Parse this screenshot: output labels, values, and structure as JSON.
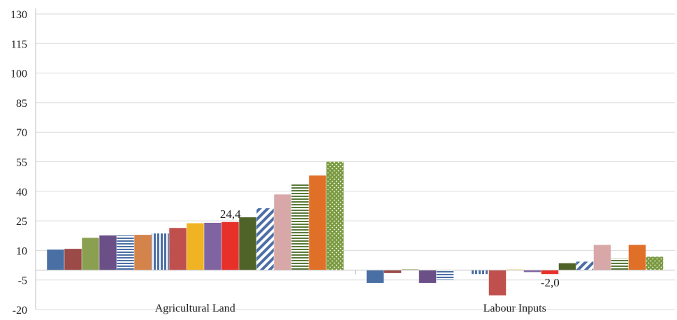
{
  "chart_data": {
    "type": "bar",
    "title": "",
    "xlabel": "",
    "ylabel": "",
    "ylim": [
      -20,
      130
    ],
    "y_ticks": [
      -20,
      -5,
      10,
      25,
      40,
      55,
      70,
      85,
      100,
      115,
      130
    ],
    "y_tick_labels": [
      "-20",
      "-5",
      "10",
      "25",
      "40",
      "55",
      "70",
      "85",
      "100",
      "115",
      "130"
    ],
    "grid": true,
    "legend": "none",
    "categories": [
      "Agricultural Land",
      "Labour Inputs"
    ],
    "series": [
      {
        "color": "#4a6fa5",
        "pattern": "solid",
        "values": [
          10.4,
          -6.5
        ]
      },
      {
        "color": "#9b4a48",
        "pattern": "solid",
        "values": [
          10.8,
          -1.5
        ]
      },
      {
        "color": "#8aa050",
        "pattern": "solid",
        "values": [
          16.4,
          0.4
        ]
      },
      {
        "color": "#6b5088",
        "pattern": "solid",
        "values": [
          17.6,
          -6.5
        ]
      },
      {
        "color": "#4a6fa5",
        "pattern": "hlines",
        "values": [
          17.6,
          -5.0
        ]
      },
      {
        "color": "#d4834a",
        "pattern": "solid",
        "values": [
          17.9,
          null
        ]
      },
      {
        "color": "#4a6fa5",
        "pattern": "vlines",
        "values": [
          18.6,
          -2.0
        ]
      },
      {
        "color": "#c0504d",
        "pattern": "solid",
        "values": [
          21.4,
          -12.8
        ]
      },
      {
        "color": "#f0b323",
        "pattern": "solid",
        "values": [
          23.8,
          0.3
        ]
      },
      {
        "color": "#8064a2",
        "pattern": "solid",
        "values": [
          24.0,
          -1.0
        ]
      },
      {
        "color": "#e8302a",
        "pattern": "solid",
        "values": [
          24.4,
          -2.0
        ]
      },
      {
        "color": "#4f6228",
        "pattern": "solid",
        "values": [
          26.8,
          3.5
        ]
      },
      {
        "color": "#4a6fa5",
        "pattern": "diagonal",
        "values": [
          31.4,
          4.3
        ]
      },
      {
        "color": "#d8a8a8",
        "pattern": "solid",
        "values": [
          38.4,
          12.8
        ]
      },
      {
        "color": "#5a7a3a",
        "pattern": "hlines",
        "values": [
          43.6,
          6.0
        ]
      },
      {
        "color": "#e07028",
        "pattern": "solid",
        "values": [
          48.0,
          12.8
        ]
      },
      {
        "color": "#7a9a40",
        "pattern": "dots",
        "values": [
          55.0,
          6.8
        ]
      }
    ],
    "annotations": [
      {
        "text": "24,4",
        "category": 0,
        "series": 10,
        "position": "above"
      },
      {
        "text": "-2,0",
        "category": 1,
        "series": 10,
        "position": "below"
      }
    ]
  }
}
